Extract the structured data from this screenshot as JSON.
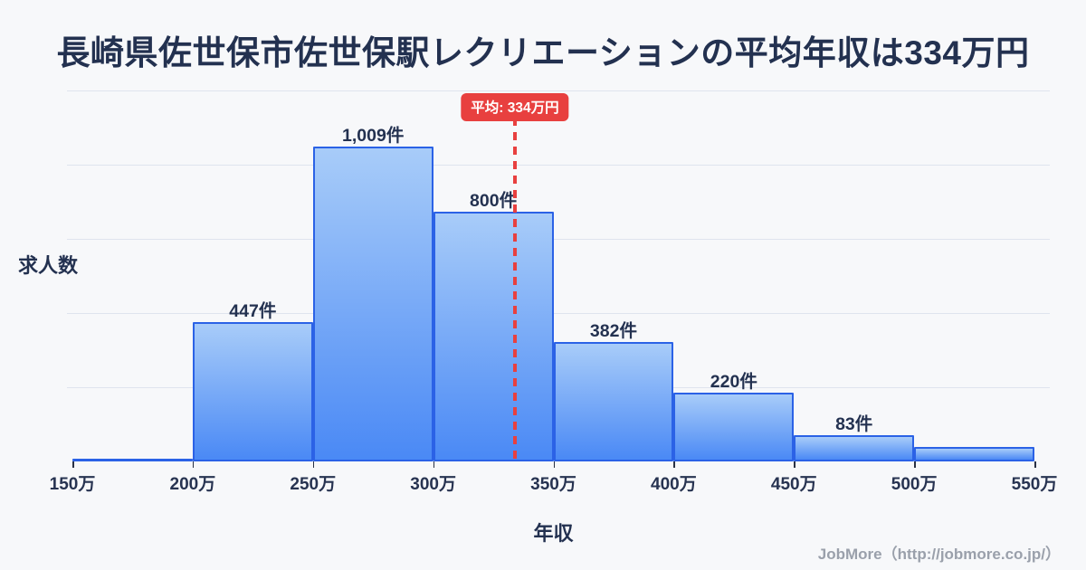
{
  "chart_data": {
    "type": "bar",
    "title": "長崎県佐世保市佐世保駅レクリエーションの平均年収は334万円",
    "xlabel": "年収",
    "ylabel": "求人数",
    "unit_suffix": "件",
    "x_range": [
      150,
      550
    ],
    "x_tick_labels": [
      "150万",
      "200万",
      "250万",
      "300万",
      "350万",
      "400万",
      "450万",
      "500万",
      "550万"
    ],
    "grid": "horizontal",
    "bins": [
      {
        "range": "150万-200万",
        "count": 0,
        "label": ""
      },
      {
        "range": "200万-250万",
        "count": 447,
        "label": "447件"
      },
      {
        "range": "250万-300万",
        "count": 1009,
        "label": "1,009件"
      },
      {
        "range": "300万-350万",
        "count": 800,
        "label": "800件"
      },
      {
        "range": "350万-400万",
        "count": 382,
        "label": "382件"
      },
      {
        "range": "400万-450万",
        "count": 220,
        "label": "220件"
      },
      {
        "range": "450万-500万",
        "count": 83,
        "label": "83件"
      },
      {
        "range": "500万-550万",
        "count": 45,
        "label": ""
      }
    ],
    "mean_line": {
      "value": 334,
      "label": "平均: 334万円",
      "style": "dashed"
    }
  },
  "footer": {
    "credit": "JobMore（http://jobmore.co.jp/）"
  },
  "colors": {
    "background": "#f7f8fa",
    "title-text": "#233150",
    "axis-text": "#273351",
    "grid": "#dfe4ee",
    "bar-border": "#2b62e6",
    "bar-fill-top": "#a8ccf9",
    "bar-fill-bottom": "#4a89f5",
    "mean-red": "#e8403f",
    "footer-text": "#9aa0ab"
  }
}
